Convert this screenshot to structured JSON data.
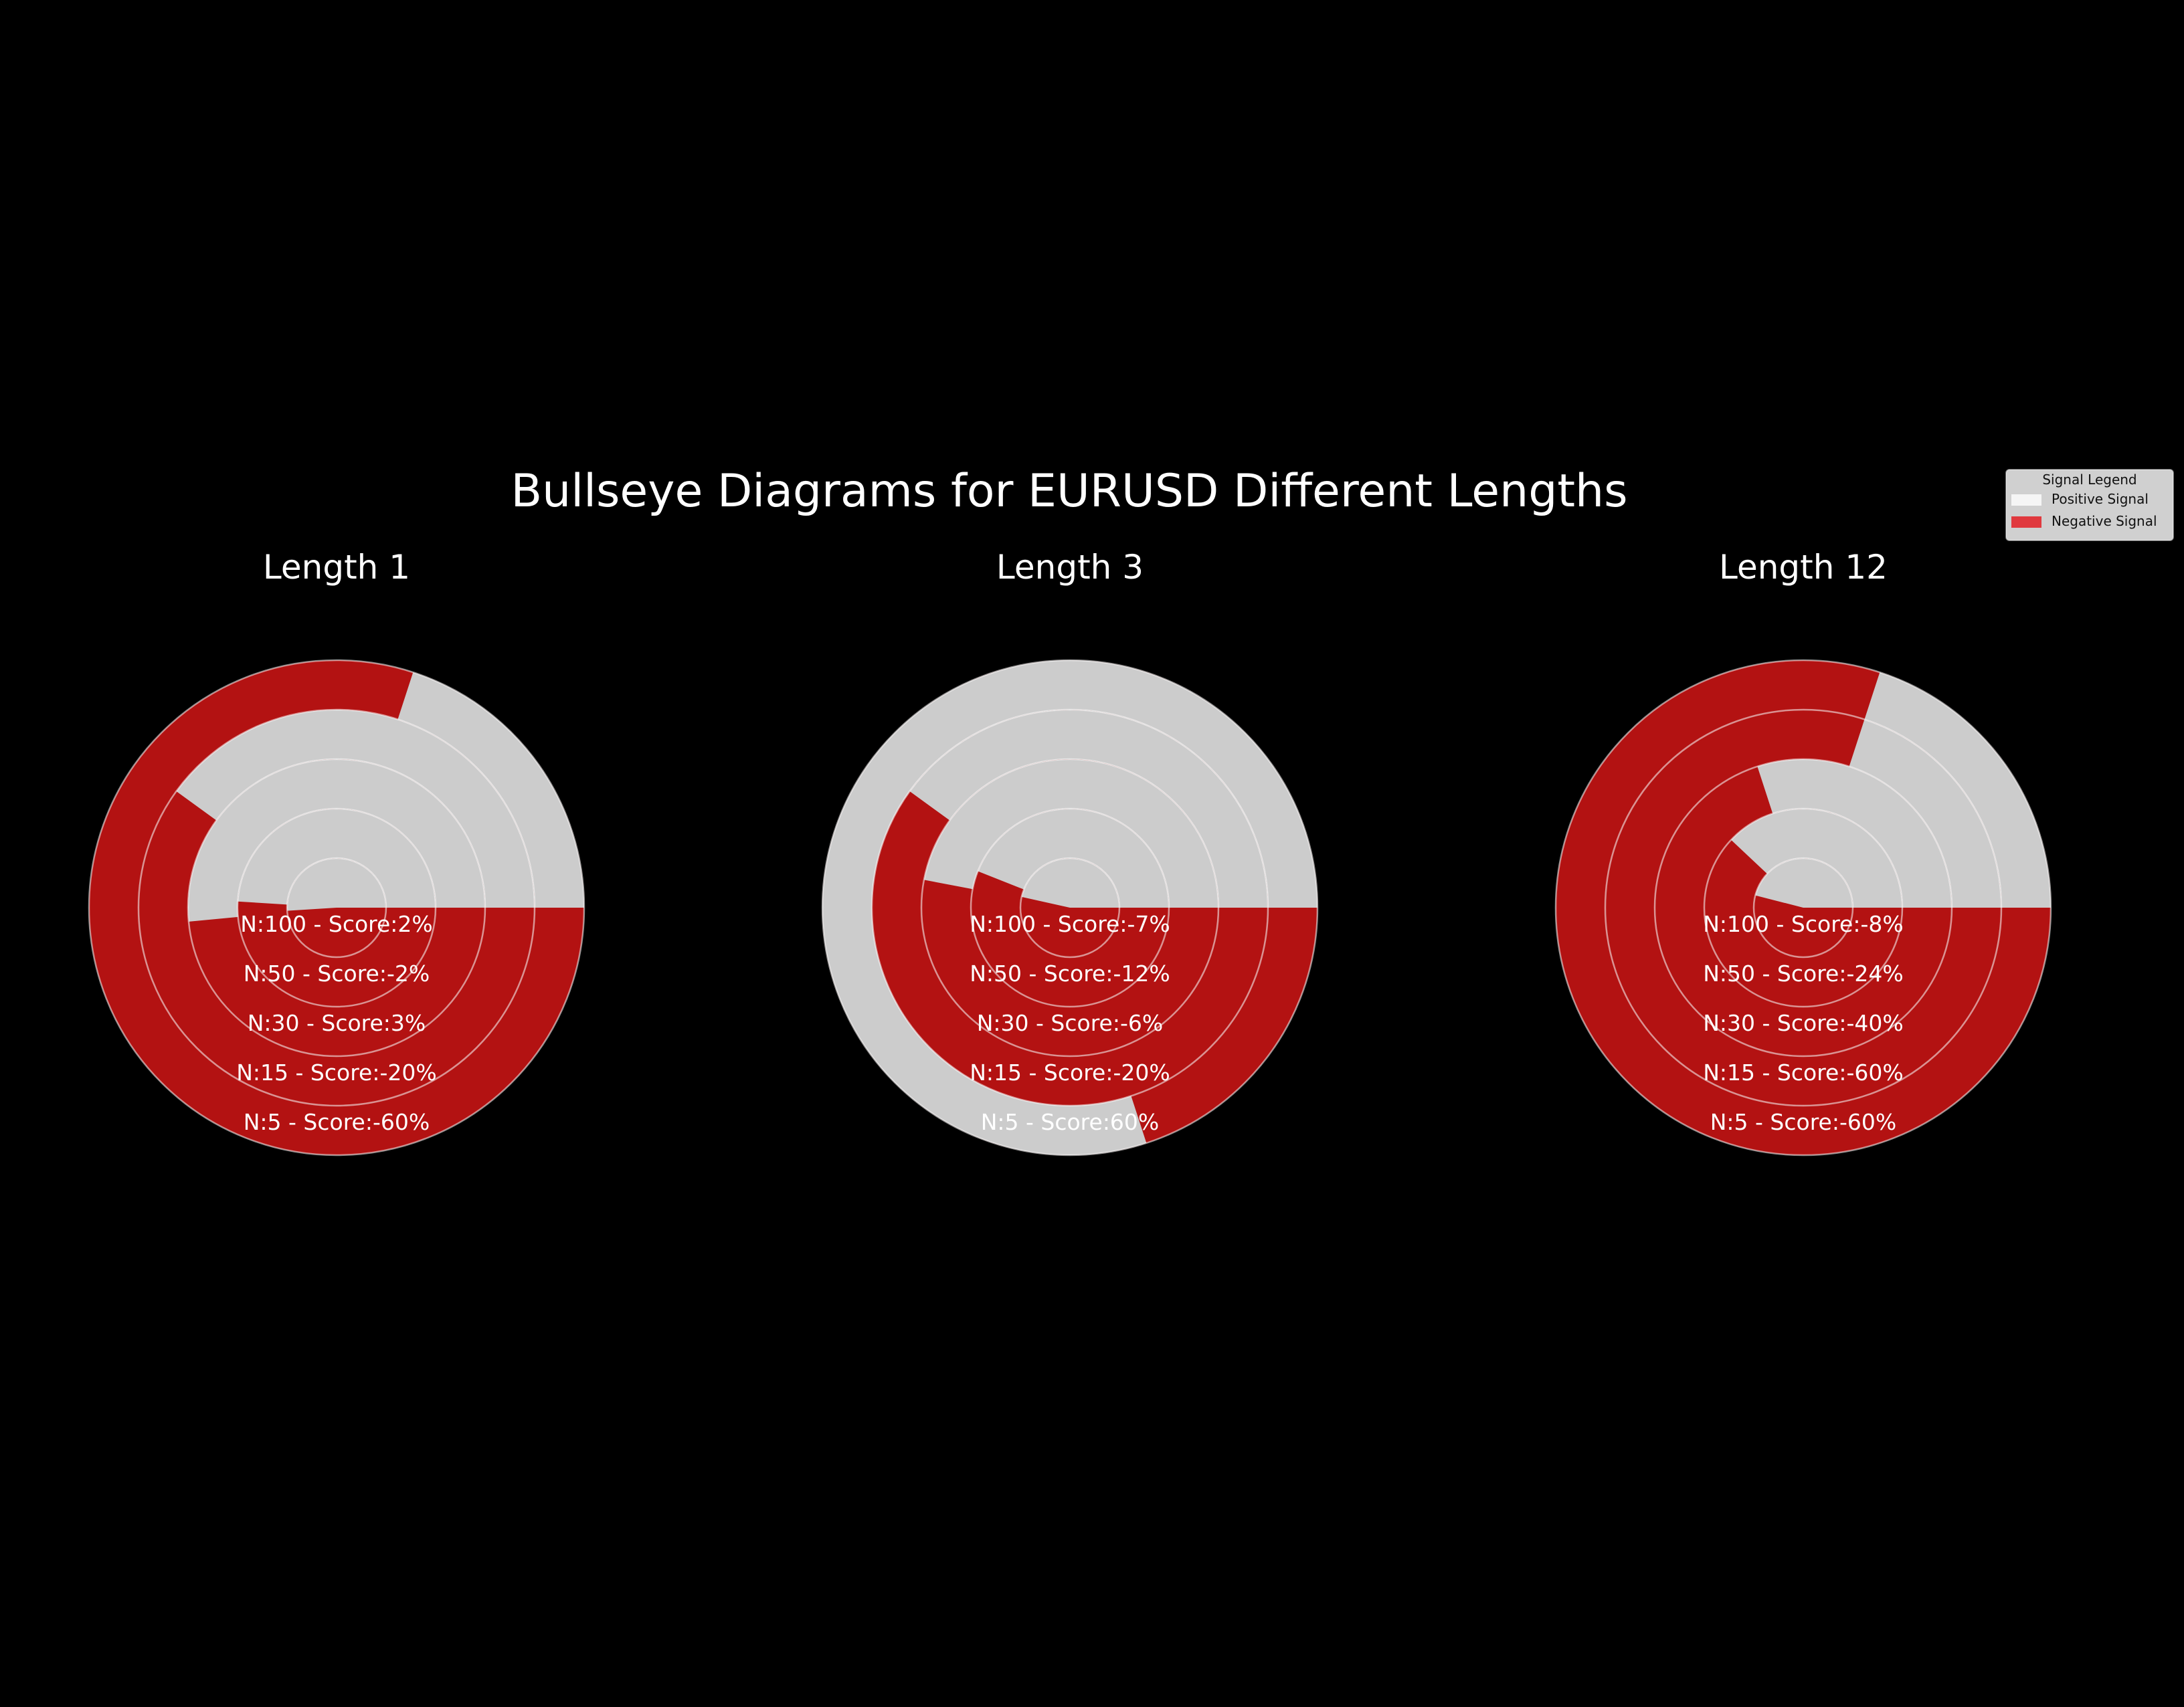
{
  "chart_data": {
    "type": "bullseye",
    "title": "Bullseye Diagrams for EURUSD Different Lengths",
    "colors": {
      "background": "#000000",
      "positive": "#cccccc",
      "negative": "#b31212",
      "ring_line": "#ffffff",
      "ring_line_on_red": "#d42a2a",
      "text": "#ffffff",
      "legend_bg": "#d0d0d0",
      "legend_text": "#111111",
      "legend_positive": "#f5f5f5",
      "legend_negative": "#e0393e"
    },
    "legend": {
      "title": "Signal Legend",
      "placement": "top-right",
      "entries": [
        {
          "label": "Positive Signal",
          "key": "positive"
        },
        {
          "label": "Negative Signal",
          "key": "negative"
        }
      ]
    },
    "ring_order_inner_to_outer": [
      "N:100",
      "N:50",
      "N:30",
      "N:15",
      "N:5"
    ],
    "panels": [
      {
        "title": "Length 1",
        "rings": [
          {
            "n": 100,
            "score": 2,
            "label": "N:100 - Score:2%"
          },
          {
            "n": 50,
            "score": -2,
            "label": "N:50 - Score:-2%"
          },
          {
            "n": 30,
            "score": 3,
            "label": "N:30 - Score:3%"
          },
          {
            "n": 15,
            "score": -20,
            "label": "N:15 - Score:-20%"
          },
          {
            "n": 5,
            "score": -60,
            "label": "N:5 - Score:-60%"
          }
        ]
      },
      {
        "title": "Length 3",
        "rings": [
          {
            "n": 100,
            "score": -7,
            "label": "N:100 - Score:-7%"
          },
          {
            "n": 50,
            "score": -12,
            "label": "N:50 - Score:-12%"
          },
          {
            "n": 30,
            "score": -6,
            "label": "N:30 - Score:-6%"
          },
          {
            "n": 15,
            "score": -20,
            "label": "N:15 - Score:-20%"
          },
          {
            "n": 5,
            "score": 60,
            "label": "N:5 - Score:60%"
          }
        ]
      },
      {
        "title": "Length 12",
        "rings": [
          {
            "n": 100,
            "score": -8,
            "label": "N:100 - Score:-8%"
          },
          {
            "n": 50,
            "score": -24,
            "label": "N:50 - Score:-24%"
          },
          {
            "n": 30,
            "score": -40,
            "label": "N:30 - Score:-40%"
          },
          {
            "n": 15,
            "score": -60,
            "label": "N:15 - Score:-60%"
          },
          {
            "n": 5,
            "score": -60,
            "label": "N:5 - Score:-60%"
          }
        ]
      }
    ]
  }
}
